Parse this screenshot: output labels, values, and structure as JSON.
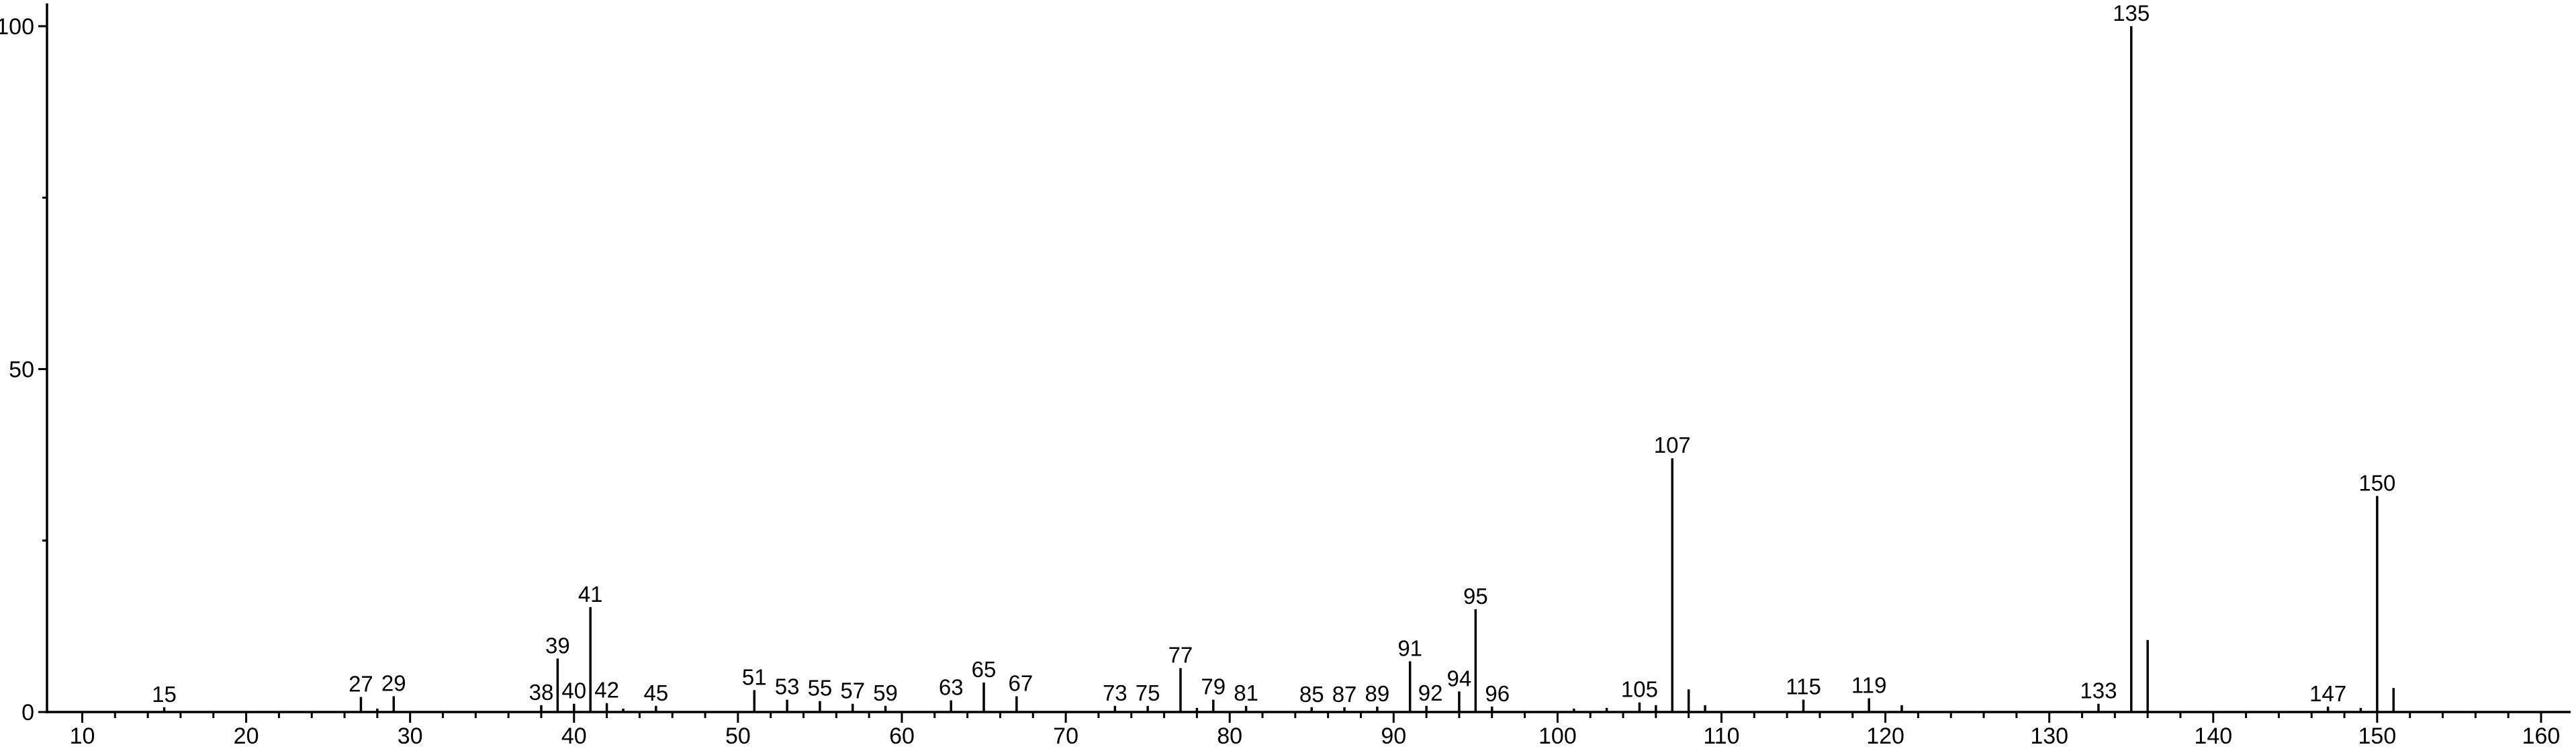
{
  "chart_data": {
    "type": "bar",
    "subtype": "mass-spectrum-stick-plot",
    "title": "",
    "xlabel": "",
    "ylabel": "",
    "xlim": [
      7.85,
      161.8
    ],
    "ylim": [
      0,
      100
    ],
    "grid": false,
    "legend_position": "none",
    "background_color": "#ffffff",
    "foreground_color": "#000000",
    "x_axis": {
      "major_tick_values": [
        10,
        20,
        30,
        40,
        50,
        60,
        70,
        80,
        90,
        100,
        110,
        120,
        130,
        140,
        150,
        160
      ],
      "major_tick_labels": [
        "10",
        "20",
        "30",
        "40",
        "50",
        "60",
        "70",
        "80",
        "90",
        "100",
        "110",
        "120",
        "130",
        "140",
        "150",
        "160"
      ],
      "minor_tick_step": 2
    },
    "y_axis": {
      "major_tick_values": [
        0,
        50,
        100
      ],
      "major_tick_labels": [
        "0",
        "50",
        "100"
      ],
      "minor_tick_values": [
        25,
        75
      ]
    },
    "peaks": [
      {
        "mz": 15,
        "intensity": 0.7,
        "labeled": true
      },
      {
        "mz": 27,
        "intensity": 2.2,
        "labeled": true
      },
      {
        "mz": 28,
        "intensity": 0.5,
        "labeled": false
      },
      {
        "mz": 29,
        "intensity": 2.3,
        "labeled": true
      },
      {
        "mz": 38,
        "intensity": 1.0,
        "labeled": true
      },
      {
        "mz": 39,
        "intensity": 7.8,
        "labeled": true
      },
      {
        "mz": 40,
        "intensity": 1.2,
        "labeled": true
      },
      {
        "mz": 41,
        "intensity": 15.3,
        "labeled": true
      },
      {
        "mz": 42,
        "intensity": 1.3,
        "labeled": true
      },
      {
        "mz": 43,
        "intensity": 0.5,
        "labeled": false
      },
      {
        "mz": 45,
        "intensity": 0.9,
        "labeled": true
      },
      {
        "mz": 51,
        "intensity": 3.2,
        "labeled": true
      },
      {
        "mz": 53,
        "intensity": 1.8,
        "labeled": true
      },
      {
        "mz": 55,
        "intensity": 1.6,
        "labeled": true
      },
      {
        "mz": 57,
        "intensity": 1.2,
        "labeled": true
      },
      {
        "mz": 59,
        "intensity": 0.9,
        "labeled": true
      },
      {
        "mz": 63,
        "intensity": 1.7,
        "labeled": true
      },
      {
        "mz": 65,
        "intensity": 4.3,
        "labeled": true
      },
      {
        "mz": 67,
        "intensity": 2.3,
        "labeled": true,
        "label_dx": 6
      },
      {
        "mz": 73,
        "intensity": 0.9,
        "labeled": true
      },
      {
        "mz": 75,
        "intensity": 0.9,
        "labeled": true
      },
      {
        "mz": 77,
        "intensity": 6.4,
        "labeled": true
      },
      {
        "mz": 78,
        "intensity": 0.6,
        "labeled": false
      },
      {
        "mz": 79,
        "intensity": 1.8,
        "labeled": true
      },
      {
        "mz": 81,
        "intensity": 0.9,
        "labeled": true
      },
      {
        "mz": 85,
        "intensity": 0.7,
        "labeled": true
      },
      {
        "mz": 87,
        "intensity": 0.7,
        "labeled": true
      },
      {
        "mz": 89,
        "intensity": 0.8,
        "labeled": true
      },
      {
        "mz": 91,
        "intensity": 7.4,
        "labeled": true
      },
      {
        "mz": 92,
        "intensity": 0.9,
        "labeled": true,
        "label_dx": 6
      },
      {
        "mz": 94,
        "intensity": 3.0,
        "labeled": true
      },
      {
        "mz": 95,
        "intensity": 15.0,
        "labeled": true
      },
      {
        "mz": 96,
        "intensity": 0.8,
        "labeled": true,
        "label_dx": 8
      },
      {
        "mz": 101,
        "intensity": 0.5,
        "labeled": false
      },
      {
        "mz": 103,
        "intensity": 0.6,
        "labeled": false
      },
      {
        "mz": 105,
        "intensity": 1.4,
        "labeled": true
      },
      {
        "mz": 106,
        "intensity": 1.0,
        "labeled": false
      },
      {
        "mz": 107,
        "intensity": 37.0,
        "labeled": true
      },
      {
        "mz": 108,
        "intensity": 3.3,
        "labeled": false
      },
      {
        "mz": 109,
        "intensity": 1.0,
        "labeled": false
      },
      {
        "mz": 115,
        "intensity": 1.8,
        "labeled": true
      },
      {
        "mz": 119,
        "intensity": 2.0,
        "labeled": true
      },
      {
        "mz": 121,
        "intensity": 1.0,
        "labeled": false
      },
      {
        "mz": 133,
        "intensity": 1.2,
        "labeled": true
      },
      {
        "mz": 135,
        "intensity": 100.0,
        "labeled": true
      },
      {
        "mz": 136,
        "intensity": 10.5,
        "labeled": false
      },
      {
        "mz": 147,
        "intensity": 0.8,
        "labeled": true
      },
      {
        "mz": 149,
        "intensity": 0.6,
        "labeled": false
      },
      {
        "mz": 150,
        "intensity": 31.5,
        "labeled": true
      },
      {
        "mz": 151,
        "intensity": 3.5,
        "labeled": false
      }
    ]
  }
}
